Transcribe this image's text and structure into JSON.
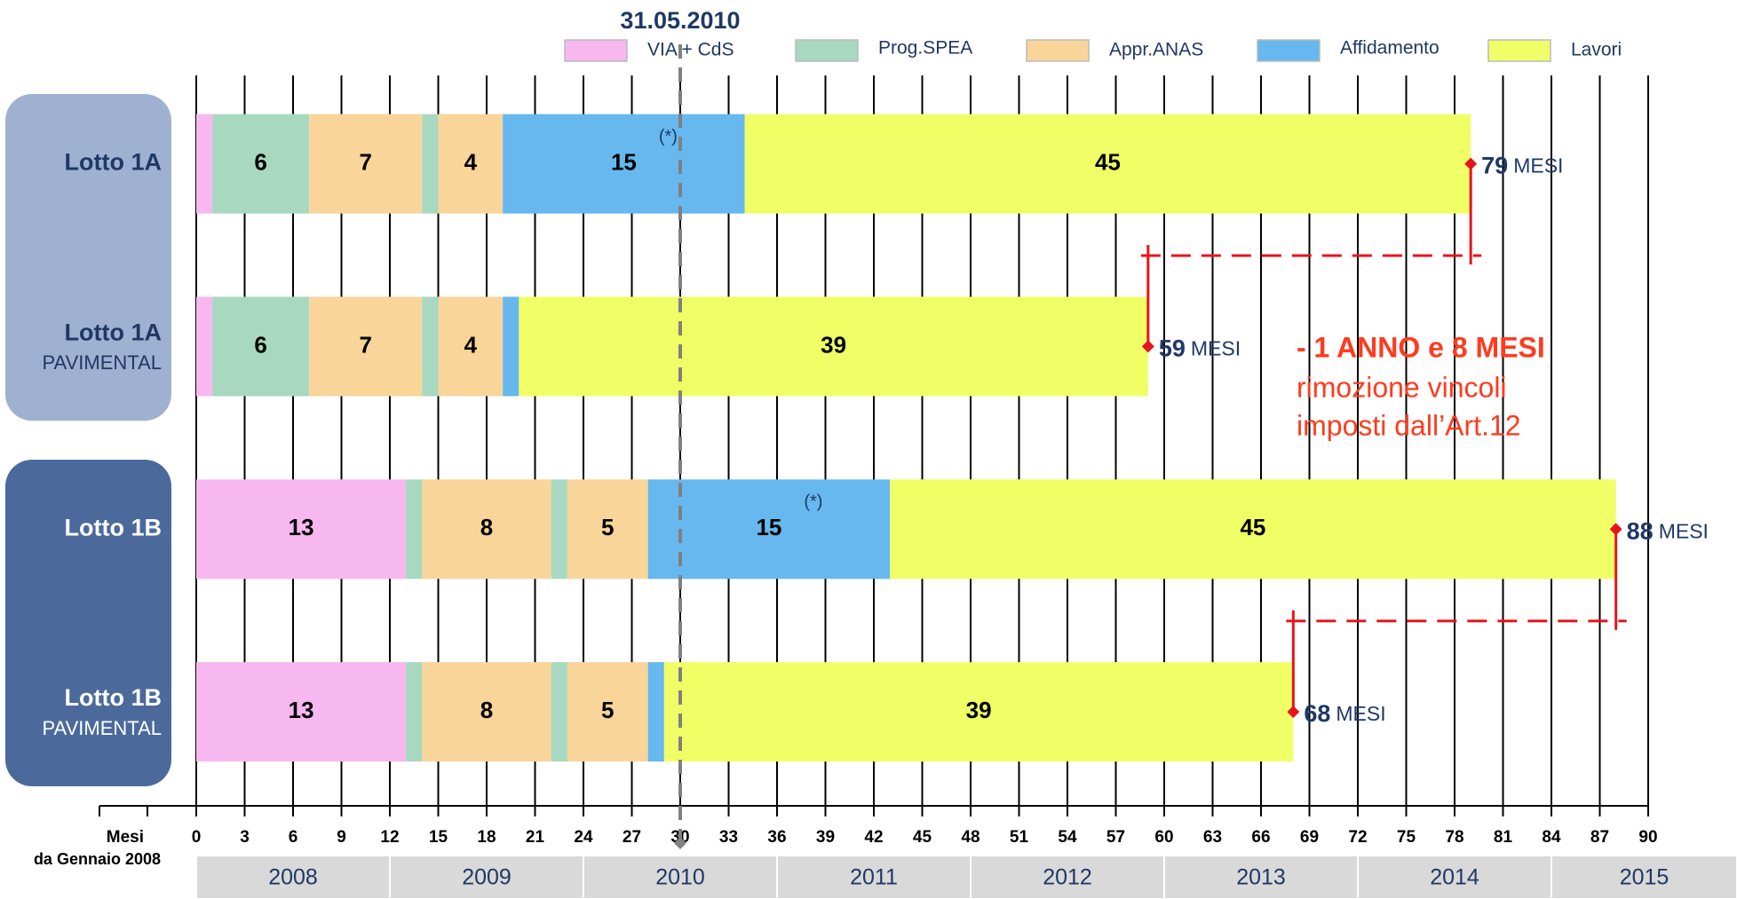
{
  "chart_data": {
    "type": "bar",
    "orientation": "horizontal",
    "stacked": true,
    "marker": {
      "value": 30,
      "label": "31.05.2010"
    },
    "series": [
      {
        "name": "VIA + CdS",
        "color": "#f7b8f0"
      },
      {
        "name": "Prog.SPEA",
        "color": "#a8d8c0"
      },
      {
        "name": "Appr.ANAS",
        "color": "#f9d59a"
      },
      {
        "name": "Affidamento",
        "color": "#66b8ee"
      },
      {
        "name": "Lavori",
        "color": "#f0ff66"
      }
    ],
    "rows": [
      {
        "label": "Lotto 1A",
        "group": 0,
        "segments": [
          {
            "series": 0,
            "value": 1
          },
          {
            "series": 1,
            "value": 6,
            "labeled": true
          },
          {
            "series": 2,
            "value": 7,
            "labeled": true
          },
          {
            "series": 1,
            "value": 1
          },
          {
            "series": 2,
            "value": 4,
            "labeled": true
          },
          {
            "series": 3,
            "value": 15,
            "labeled": true,
            "note": "(*)"
          },
          {
            "series": 4,
            "value": 45,
            "labeled": true
          }
        ],
        "total": 79,
        "unit": "MESI"
      },
      {
        "label": "Lotto 1A",
        "sublabel": "PAVIMENTAL",
        "group": 0,
        "segments": [
          {
            "series": 0,
            "value": 1
          },
          {
            "series": 1,
            "value": 6,
            "labeled": true
          },
          {
            "series": 2,
            "value": 7,
            "labeled": true
          },
          {
            "series": 1,
            "value": 1
          },
          {
            "series": 2,
            "value": 4,
            "labeled": true
          },
          {
            "series": 3,
            "value": 1
          },
          {
            "series": 4,
            "value": 39,
            "labeled": true
          }
        ],
        "total": 59,
        "unit": "MESI"
      },
      {
        "label": "Lotto 1B",
        "group": 1,
        "segments": [
          {
            "series": 0,
            "value": 13,
            "labeled": true
          },
          {
            "series": 1,
            "value": 1
          },
          {
            "series": 2,
            "value": 8,
            "labeled": true
          },
          {
            "series": 1,
            "value": 1
          },
          {
            "series": 2,
            "value": 5,
            "labeled": true
          },
          {
            "series": 3,
            "value": 15,
            "labeled": true,
            "note": "(*)"
          },
          {
            "series": 4,
            "value": 45,
            "labeled": true
          }
        ],
        "total": 88,
        "unit": "MESI"
      },
      {
        "label": "Lotto 1B",
        "sublabel": "PAVIMENTAL",
        "group": 1,
        "segments": [
          {
            "series": 0,
            "value": 13,
            "labeled": true
          },
          {
            "series": 1,
            "value": 1
          },
          {
            "series": 2,
            "value": 8,
            "labeled": true
          },
          {
            "series": 1,
            "value": 1
          },
          {
            "series": 2,
            "value": 5,
            "labeled": true
          },
          {
            "series": 3,
            "value": 1
          },
          {
            "series": 4,
            "value": 39,
            "labeled": true
          }
        ],
        "total": 68,
        "unit": "MESI"
      }
    ],
    "comparisons": [
      [
        0,
        1
      ],
      [
        2,
        3
      ]
    ],
    "annotation": {
      "title": "- 1 ANNO e 8 MESI",
      "lines": [
        "rimozione vincoli",
        "imposti dall’Art.12"
      ]
    },
    "xlabel": [
      "Mesi",
      "da Gennaio 2008"
    ],
    "xlim": [
      0,
      90
    ],
    "xticks": [
      0,
      3,
      6,
      9,
      12,
      15,
      18,
      21,
      24,
      27,
      30,
      33,
      36,
      39,
      42,
      45,
      48,
      51,
      54,
      57,
      60,
      63,
      66,
      69,
      72,
      75,
      78,
      81,
      84,
      87,
      90
    ],
    "years": [
      "2008",
      "2009",
      "2010",
      "2011",
      "2012",
      "2013",
      "2014",
      "2015"
    ],
    "grid": true
  }
}
